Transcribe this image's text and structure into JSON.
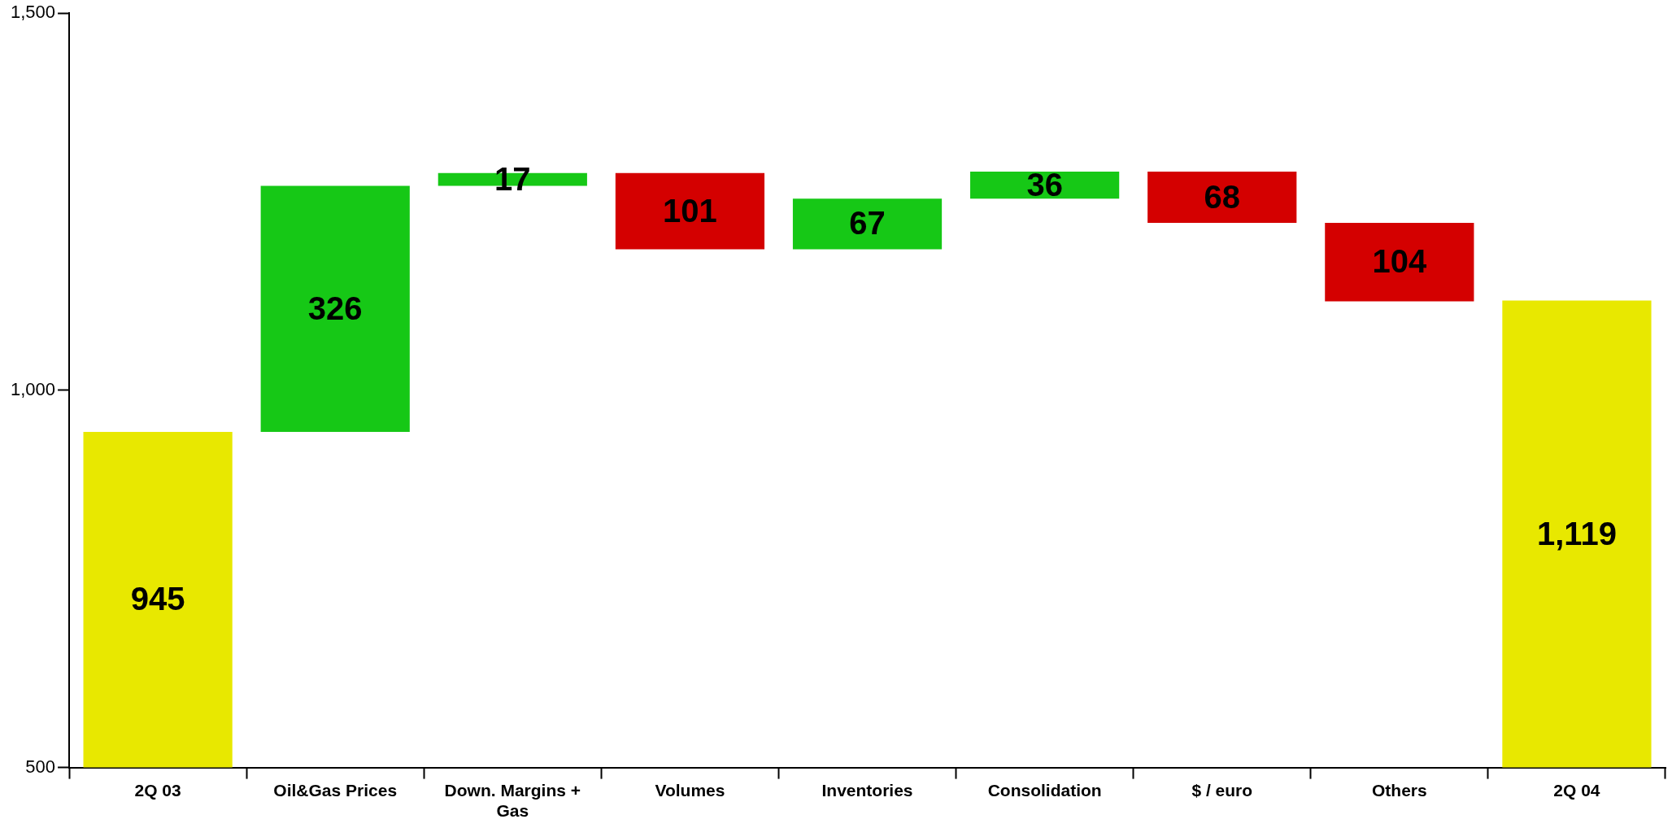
{
  "chart_data": {
    "type": "bar",
    "categories": [
      "2Q 03",
      "Oil&Gas Prices",
      "Down. Margins + Gas",
      "Volumes",
      "Inventories",
      "Consolidation",
      "$ / euro",
      "Others",
      "2Q 04"
    ],
    "values": [
      945,
      326,
      17,
      -101,
      67,
      36,
      -68,
      -104,
      1119
    ],
    "base": [
      null,
      945,
      1271,
      1288,
      1187,
      1254,
      1290,
      1222,
      null
    ],
    "colors": [
      "#e8e800",
      "#16c816",
      "#16c816",
      "#d40000",
      "#16c816",
      "#16c816",
      "#d40000",
      "#d40000",
      "#e8e800"
    ],
    "value_labels": [
      "945",
      "326",
      "17",
      "101",
      "67",
      "36",
      "68",
      "104",
      "1,119"
    ],
    "ylim": [
      500,
      1500
    ],
    "yticks": [
      500,
      {
        "value": 1000,
        "label": "1,000"
      },
      {
        "value": 1500,
        "label": "1,500"
      }
    ],
    "grid": false,
    "legend": false
  }
}
